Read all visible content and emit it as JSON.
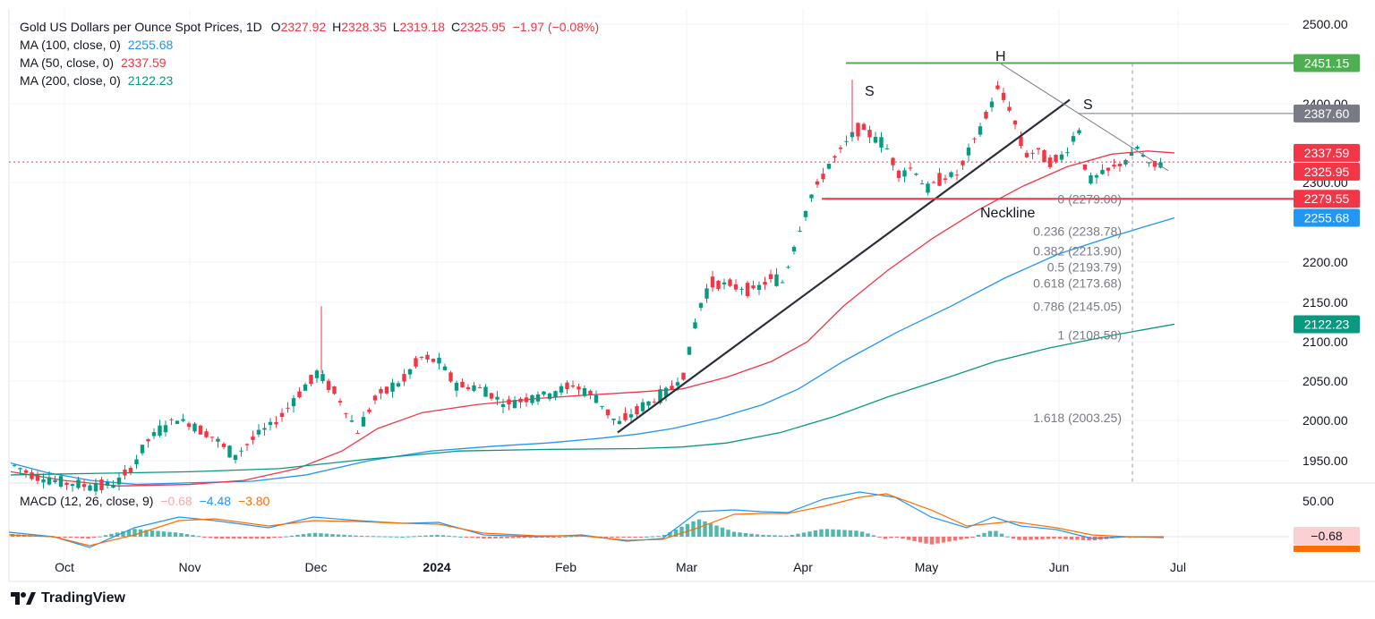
{
  "legend": {
    "title": "Gold US Dollars per Ounce Spot Prices, 1D",
    "o_label": "O",
    "o_value": "2327.92",
    "h_label": "H",
    "h_value": "2328.35",
    "l_label": "L",
    "l_value": "2319.18",
    "c_label": "C",
    "c_value": "2325.95",
    "change": "−1.97 (−0.08%)",
    "ma100_label": "MA (100, close, 0)",
    "ma100_value": "2255.68",
    "ma50_label": "MA (50, close, 0)",
    "ma50_value": "2337.59",
    "ma200_label": "MA (200, close, 0)",
    "ma200_value": "2122.23",
    "macd_label": "MACD (12, 26, close, 9)",
    "macd_hist": "−0.68",
    "macd_line": "−4.48",
    "macd_signal": "−3.80"
  },
  "brand": "TradingView",
  "colors": {
    "up": "#089981",
    "down": "#f23645",
    "ma100": "#2196f3",
    "ma50": "#f23645",
    "ma200": "#089981",
    "macd": "#2196f3",
    "signal": "#ff6d00",
    "green_line": "#4caf50",
    "grid": "#f0f3fa",
    "text": "#131722"
  },
  "chart_data": [
    {
      "type": "candlestick",
      "title": "Gold US Dollars per Ounce Spot Prices, 1D",
      "x_ticks": [
        "Oct",
        "Nov",
        "Dec",
        "2024",
        "Feb",
        "Mar",
        "Apr",
        "May",
        "Jun",
        "Jul"
      ],
      "y_ticks": [
        "1950.00",
        "2000.00",
        "2050.00",
        "2100.00",
        "2150.00",
        "2200.00",
        "2300.00",
        "2400.00",
        "2500.00"
      ],
      "ylim": [
        1925,
        2515
      ],
      "series": [
        {
          "name": "MA (100, close, 0)",
          "points": [
            [
              0,
              1947
            ],
            [
              40,
              1935
            ],
            [
              90,
              1925
            ],
            [
              140,
              1920
            ],
            [
              200,
              1922
            ],
            [
              270,
              1924
            ],
            [
              330,
              1932
            ],
            [
              400,
              1950
            ],
            [
              470,
              1962
            ],
            [
              540,
              1968
            ],
            [
              600,
              1972
            ],
            [
              660,
              1978
            ],
            [
              700,
              1983
            ],
            [
              740,
              1990
            ],
            [
              790,
              2003
            ],
            [
              840,
              2020
            ],
            [
              880,
              2040
            ],
            [
              930,
              2075
            ],
            [
              990,
              2112
            ],
            [
              1050,
              2145
            ],
            [
              1110,
              2180
            ],
            [
              1170,
              2210
            ],
            [
              1230,
              2232
            ],
            [
              1300,
              2255.68
            ]
          ]
        },
        {
          "name": "MA (50, close, 0)",
          "points": [
            [
              0,
              1936
            ],
            [
              60,
              1925
            ],
            [
              120,
              1918
            ],
            [
              200,
              1920
            ],
            [
              260,
              1925
            ],
            [
              320,
              1940
            ],
            [
              370,
              1962
            ],
            [
              410,
              1990
            ],
            [
              460,
              2010
            ],
            [
              520,
              2020
            ],
            [
              590,
              2028
            ],
            [
              640,
              2032
            ],
            [
              700,
              2036
            ],
            [
              750,
              2040
            ],
            [
              800,
              2055
            ],
            [
              850,
              2075
            ],
            [
              890,
              2100
            ],
            [
              930,
              2145
            ],
            [
              980,
              2190
            ],
            [
              1030,
              2230
            ],
            [
              1080,
              2265
            ],
            [
              1130,
              2295
            ],
            [
              1180,
              2320
            ],
            [
              1230,
              2336
            ],
            [
              1270,
              2340
            ],
            [
              1300,
              2337.59
            ]
          ]
        },
        {
          "name": "MA (200, close, 0)",
          "points": [
            [
              0,
              1932
            ],
            [
              100,
              1934
            ],
            [
              200,
              1936
            ],
            [
              300,
              1940
            ],
            [
              400,
              1952
            ],
            [
              500,
              1962
            ],
            [
              600,
              1964
            ],
            [
              700,
              1965
            ],
            [
              750,
              1967
            ],
            [
              800,
              1972
            ],
            [
              860,
              1985
            ],
            [
              920,
              2005
            ],
            [
              980,
              2030
            ],
            [
              1040,
              2052
            ],
            [
              1100,
              2075
            ],
            [
              1160,
              2092
            ],
            [
              1230,
              2108
            ],
            [
              1300,
              2122.23
            ]
          ]
        }
      ],
      "price_labels": [
        {
          "label": "2451.15",
          "value": 2451.15,
          "color": "#4caf50"
        },
        {
          "label": "2387.60",
          "value": 2387.6,
          "color": "#787b86"
        },
        {
          "label": "2337.59",
          "value": 2337.59,
          "color": "#f23645"
        },
        {
          "label": "2325.95",
          "value": 2325.95,
          "color": "#f23645"
        },
        {
          "label": "2279.55",
          "value": 2279.55,
          "color": "#f23645"
        },
        {
          "label": "2255.68",
          "value": 2255.68,
          "color": "#2196f3"
        },
        {
          "label": "2122.23",
          "value": 2122.23,
          "color": "#089981"
        }
      ],
      "annotations": {
        "head": "H",
        "left_shoulder": "S",
        "right_shoulder": "S",
        "neckline": "Neckline",
        "fib_levels": [
          {
            "label": "0 (2279.00)",
            "value": 2279.0
          },
          {
            "label": "0.236 (2238.78)",
            "value": 2238.78
          },
          {
            "label": "0.382 (2213.90)",
            "value": 2213.9
          },
          {
            "label": "0.5 (2193.79)",
            "value": 2193.79
          },
          {
            "label": "0.618 (2173.68)",
            "value": 2173.68
          },
          {
            "label": "0.786 (2145.05)",
            "value": 2145.05
          },
          {
            "label": "1 (2108.58)",
            "value": 2108.58
          },
          {
            "label": "1.618 (2003.25)",
            "value": 2003.25
          }
        ]
      }
    },
    {
      "type": "macd",
      "title": "MACD (12, 26, close, 9)",
      "y_ticks": [
        "50.00"
      ],
      "values": {
        "histogram": -0.68,
        "macd": -4.48,
        "signal": -3.8
      }
    }
  ]
}
